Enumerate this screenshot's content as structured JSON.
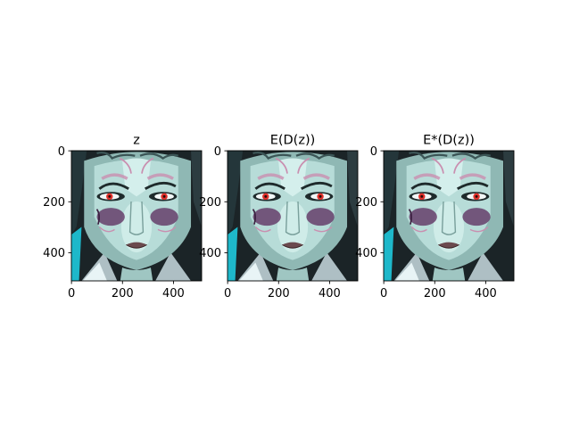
{
  "chart_data": [
    {
      "type": "image",
      "title": "z",
      "xticks": [
        0,
        200,
        400
      ],
      "yticks": [
        0,
        200,
        400
      ],
      "xlim": [
        0,
        511
      ],
      "ylim": [
        511,
        0
      ],
      "grid": false
    },
    {
      "type": "image",
      "title": "E(D(z))",
      "xticks": [
        0,
        200,
        400
      ],
      "yticks": [
        0,
        200,
        400
      ],
      "xlim": [
        0,
        511
      ],
      "ylim": [
        511,
        0
      ],
      "grid": false
    },
    {
      "type": "image",
      "title": "E*(D(z))",
      "xticks": [
        0,
        200,
        400
      ],
      "yticks": [
        0,
        200,
        400
      ],
      "xlim": [
        0,
        511
      ],
      "ylim": [
        511,
        0
      ],
      "grid": false
    }
  ],
  "colors": {
    "skin_light": "#c8e8e4",
    "skin_mid": "#8fb8b4",
    "skin_dark": "#4f6f6c",
    "hair": "#1b2427",
    "eye_iris": "#e0302a",
    "eye_shadow": "#5b2a5c",
    "marking": "#c98fb0",
    "lips": "#6b4a4e",
    "armor": "#aebfc4",
    "accent_cyan": "#1fd2e8"
  }
}
